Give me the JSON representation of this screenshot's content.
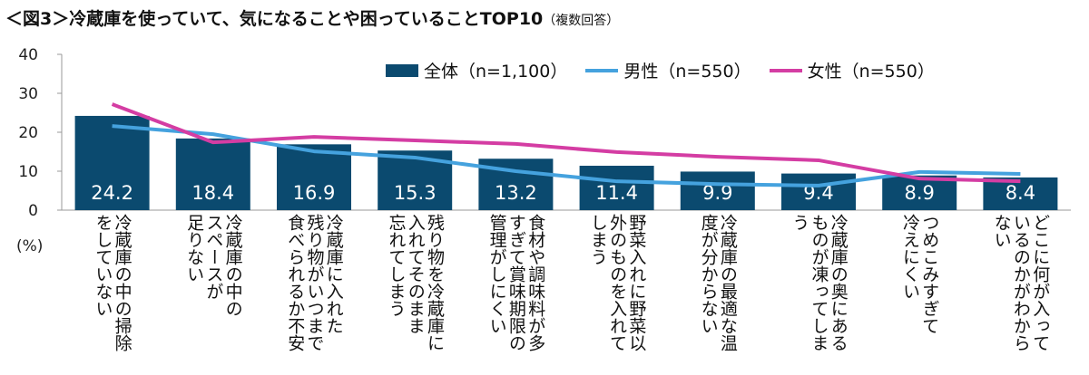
{
  "title": "＜図3＞冷蔵庫を使っていて、気になることや困っていることTOP10",
  "subtitle": "（複数回答）",
  "colors": {
    "total": "#0b4a6f",
    "male": "#45a2de",
    "female": "#d43da3"
  },
  "chart_data": {
    "type": "bar",
    "ylabel": "(%)",
    "ylim": [
      0,
      40
    ],
    "yticks": [
      0,
      10,
      20,
      30,
      40
    ],
    "grid": false,
    "legend_placement": "top",
    "categories": [
      "冷蔵庫の中の掃除\nをしていない",
      "冷蔵庫の中の\nスペースが\n足りない",
      "冷蔵庫に入れた\n残り物がいつまで\n食べられるか不安",
      "残り物を冷蔵庫に\n入れてそのまま\n忘れてしまう",
      "食材や調味料が多\nすぎて賞味期限の\n管理がしにくい",
      "野菜入れに野菜以\n外のものを入れて\nしまう",
      "冷蔵庫の最適な温\n度が分からない",
      "冷蔵庫の奥にある\nものが凍ってしま\nう",
      "つめこみすぎて\n冷えにくい",
      "どこに何が入って\nいるのかがわから\nない"
    ],
    "series": [
      {
        "name": "全体（n=1,100）",
        "type": "bar",
        "values": [
          24.2,
          18.4,
          16.9,
          15.3,
          13.2,
          11.4,
          9.9,
          9.4,
          8.9,
          8.4
        ]
      },
      {
        "name": "男性（n=550）",
        "type": "line",
        "values": [
          21.6,
          19.5,
          15.1,
          13.5,
          10.0,
          7.4,
          6.7,
          6.3,
          9.8,
          9.3
        ]
      },
      {
        "name": "女性（n=550）",
        "type": "line",
        "values": [
          27.2,
          17.4,
          18.8,
          17.9,
          17.0,
          14.9,
          13.7,
          12.8,
          8.1,
          7.4
        ]
      }
    ]
  }
}
